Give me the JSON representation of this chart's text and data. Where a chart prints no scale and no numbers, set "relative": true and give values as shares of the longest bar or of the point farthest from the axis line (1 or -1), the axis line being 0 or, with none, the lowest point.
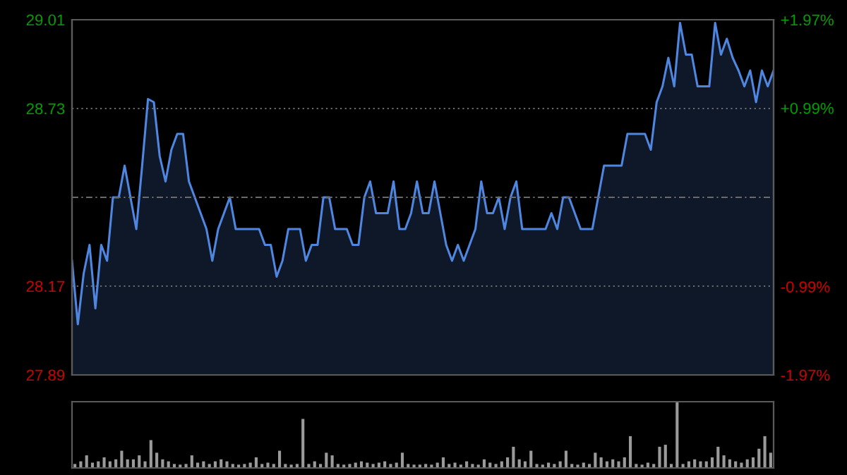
{
  "chart_data": [
    {
      "type": "area",
      "categories": [
        null,
        null,
        null,
        null,
        null,
        null,
        null,
        null,
        null,
        null,
        null,
        null,
        null,
        null,
        null,
        null,
        null,
        null,
        null,
        null,
        null,
        null,
        null,
        null,
        null,
        null,
        null,
        null,
        null,
        null,
        null,
        null,
        null,
        null,
        null,
        null,
        null,
        null,
        null,
        null,
        null,
        null,
        null,
        null,
        null,
        null,
        null,
        null,
        null,
        null,
        null,
        null,
        null,
        null,
        null,
        null,
        null,
        null,
        null,
        null,
        null,
        null,
        null,
        null,
        null,
        null,
        null,
        null,
        null,
        null,
        null,
        null,
        null,
        null,
        null,
        null,
        null,
        null,
        null,
        null,
        null,
        null,
        null,
        null,
        null,
        null,
        null,
        null,
        null,
        null,
        null,
        null,
        null,
        null,
        null,
        null,
        null,
        null,
        null,
        null,
        null,
        null,
        null,
        null,
        null,
        null,
        null,
        null,
        null,
        null,
        null,
        null,
        null,
        null,
        null,
        null,
        null,
        null,
        null,
        null,
        null
      ],
      "series": [
        {
          "color": "#4f86e0",
          "values": [
            28.25,
            28.05,
            28.21,
            28.3,
            28.1,
            28.3,
            28.25,
            28.45,
            28.45,
            28.55,
            28.45,
            28.35,
            28.55,
            28.76,
            28.75,
            28.58,
            28.5,
            28.6,
            28.65,
            28.65,
            28.5,
            28.45,
            28.4,
            28.35,
            28.25,
            28.35,
            28.4,
            28.45,
            28.35,
            28.35,
            28.35,
            28.35,
            28.35,
            28.3,
            28.3,
            28.2,
            28.25,
            28.35,
            28.35,
            28.35,
            28.25,
            28.3,
            28.3,
            28.45,
            28.45,
            28.35,
            28.35,
            28.35,
            28.3,
            28.3,
            28.45,
            28.5,
            28.4,
            28.4,
            28.4,
            28.5,
            28.35,
            28.35,
            28.4,
            28.5,
            28.4,
            28.4,
            28.5,
            28.4,
            28.3,
            28.25,
            28.3,
            28.25,
            28.3,
            28.35,
            28.5,
            28.4,
            28.4,
            28.45,
            28.35,
            28.45,
            28.5,
            28.35,
            28.35,
            28.35,
            28.35,
            28.35,
            28.4,
            28.35,
            28.45,
            28.45,
            28.4,
            28.35,
            28.35,
            28.35,
            28.45,
            28.55,
            28.55,
            28.55,
            28.55,
            28.65,
            28.65,
            28.65,
            28.65,
            28.6,
            28.75,
            28.8,
            28.89,
            28.8,
            29.0,
            28.9,
            28.9,
            28.8,
            28.8,
            28.8,
            29.0,
            28.9,
            28.95,
            28.89,
            28.85,
            28.8,
            28.85,
            28.75,
            28.85,
            28.8,
            28.85
          ]
        }
      ],
      "ylim": [
        27.89,
        29.01
      ],
      "yticks": [
        27.89,
        28.17,
        28.73,
        29.01
      ],
      "y2lim": [
        -1.97,
        1.97
      ],
      "y2ticks": [
        {
          "value": -1.97,
          "label": "-1.97%"
        },
        {
          "value": -0.99,
          "label": "-0.99%"
        },
        {
          "value": 0.99,
          "label": "+0.99%"
        },
        {
          "value": 1.97,
          "label": "+1.97%"
        }
      ],
      "ref_lines": [
        {
          "axis": "y",
          "value": 28.45,
          "color": "#6a6a6a",
          "line_style": "dashed"
        }
      ],
      "grid": "y"
    },
    {
      "type": "bar",
      "relative": true,
      "categories": [
        null,
        null,
        null,
        null,
        null,
        null,
        null,
        null,
        null,
        null,
        null,
        null,
        null,
        null,
        null,
        null,
        null,
        null,
        null,
        null,
        null,
        null,
        null,
        null,
        null,
        null,
        null,
        null,
        null,
        null,
        null,
        null,
        null,
        null,
        null,
        null,
        null,
        null,
        null,
        null,
        null,
        null,
        null,
        null,
        null,
        null,
        null,
        null,
        null,
        null,
        null,
        null,
        null,
        null,
        null,
        null,
        null,
        null,
        null,
        null,
        null,
        null,
        null,
        null,
        null,
        null,
        null,
        null,
        null,
        null,
        null,
        null,
        null,
        null,
        null,
        null,
        null,
        null,
        null,
        null,
        null,
        null,
        null,
        null,
        null,
        null,
        null,
        null,
        null,
        null,
        null,
        null,
        null,
        null,
        null,
        null,
        null,
        null,
        null,
        null,
        null,
        null,
        null,
        null,
        null,
        null,
        null,
        null,
        null,
        null,
        null,
        null,
        null,
        null,
        null,
        null,
        null,
        null,
        null,
        null
      ],
      "color": "#9a9a9a",
      "values": [
        0.06,
        0.1,
        0.19,
        0.08,
        0.1,
        0.16,
        0.1,
        0.13,
        0.26,
        0.13,
        0.13,
        0.19,
        0.1,
        0.42,
        0.23,
        0.13,
        0.1,
        0.06,
        0.05,
        0.06,
        0.19,
        0.08,
        0.1,
        0.06,
        0.1,
        0.13,
        0.1,
        0.06,
        0.05,
        0.06,
        0.08,
        0.16,
        0.06,
        0.08,
        0.06,
        0.26,
        0.06,
        0.05,
        0.06,
        0.74,
        0.06,
        0.1,
        0.06,
        0.23,
        0.19,
        0.06,
        0.05,
        0.06,
        0.08,
        0.1,
        0.08,
        0.06,
        0.08,
        0.1,
        0.06,
        0.08,
        0.23,
        0.06,
        0.05,
        0.05,
        0.06,
        0.05,
        0.08,
        0.16,
        0.06,
        0.08,
        0.05,
        0.1,
        0.06,
        0.05,
        0.13,
        0.08,
        0.06,
        0.1,
        0.16,
        0.32,
        0.13,
        0.1,
        0.26,
        0.06,
        0.05,
        0.08,
        0.06,
        0.1,
        0.26,
        0.06,
        0.05,
        0.08,
        0.06,
        0.23,
        0.16,
        0.1,
        0.13,
        0.1,
        0.16,
        0.48,
        0.06,
        0.05,
        0.08,
        0.06,
        0.32,
        0.35,
        0.06,
        1,
        0.06,
        0.1,
        0.13,
        0.1,
        0.1,
        0.16,
        0.32,
        0.19,
        0.13,
        0.1,
        0.08,
        0.13,
        0.16,
        0.29,
        0.48,
        0.23
      ]
    }
  ]
}
